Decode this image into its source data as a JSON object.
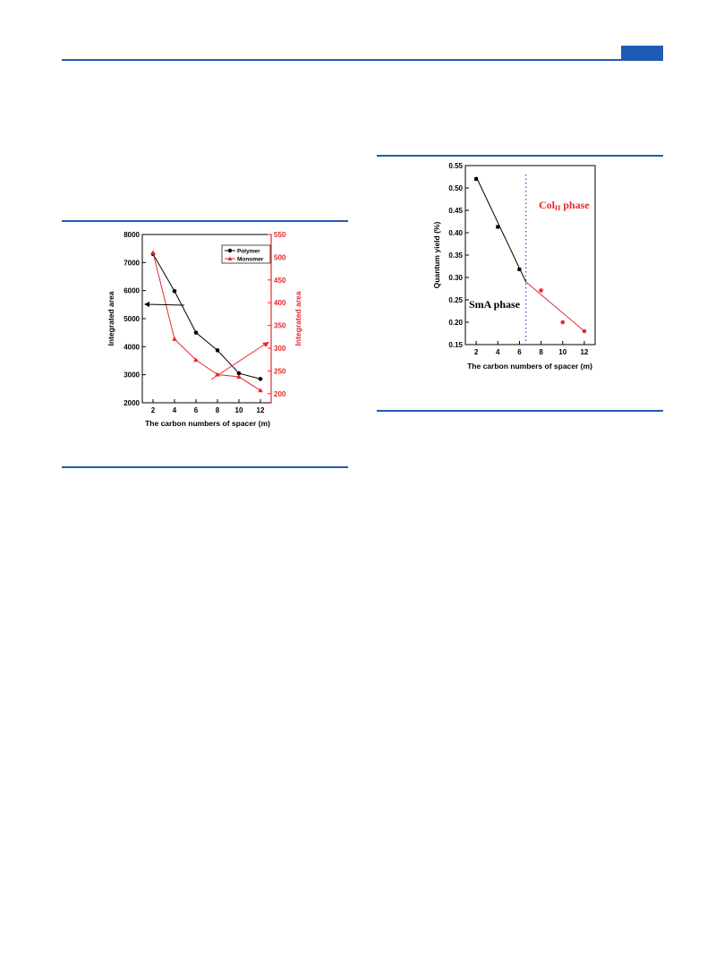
{
  "page": {
    "accent_color": "#1f5bb5"
  },
  "figure_left": {
    "chart_data": {
      "type": "line",
      "xlabel": "The carbon numbers of spacer (m)",
      "ylabel_left": "Integrated area",
      "ylabel_right": "Integrated area",
      "x_ticks": [
        "2",
        "4",
        "6",
        "8",
        "10",
        "12"
      ],
      "y_left_ticks": [
        "2000",
        "3000",
        "4000",
        "5000",
        "6000",
        "7000",
        "8000"
      ],
      "y_right_ticks": [
        "200",
        "250",
        "300",
        "350",
        "400",
        "450",
        "500",
        "550"
      ],
      "ylim_left": [
        2000,
        8000
      ],
      "ylim_right": [
        180,
        550
      ],
      "xlim": [
        1,
        13
      ],
      "legend_position": "top-right",
      "series": [
        {
          "name": "Polymer",
          "axis": "left",
          "color": "#000000",
          "marker": "circle",
          "x": [
            2,
            4,
            6,
            8,
            10,
            12
          ],
          "values": [
            7300,
            5980,
            4500,
            3870,
            3050,
            2850
          ]
        },
        {
          "name": "Monomer",
          "axis": "right",
          "color": "#e8262b",
          "marker": "triangle",
          "x": [
            2,
            4,
            6,
            8,
            10,
            12
          ],
          "values": [
            510,
            320,
            274,
            242,
            237,
            207
          ]
        }
      ]
    }
  },
  "figure_right": {
    "chart_data": {
      "type": "scatter",
      "xlabel": "The carbon numbers of spacer (m)",
      "ylabel": "Quantum yield (%)",
      "x_ticks": [
        "2",
        "4",
        "6",
        "8",
        "10",
        "12"
      ],
      "y_ticks": [
        "0.15",
        "0.20",
        "0.25",
        "0.30",
        "0.35",
        "0.40",
        "0.45",
        "0.50",
        "0.55"
      ],
      "ylim": [
        0.15,
        0.55
      ],
      "xlim": [
        1,
        13
      ],
      "phase_boundary_x": 6.6,
      "annotations": {
        "smA": "SmA phase",
        "colh_main": "Col",
        "colh_sub": "H",
        "colh_tail": " phase"
      },
      "series": [
        {
          "color": "#000000",
          "marker": "square",
          "x": [
            2,
            4,
            6
          ],
          "values": [
            0.52,
            0.413,
            0.318
          ],
          "fit": [
            [
              2,
              0.525
            ],
            [
              6.6,
              0.29
            ]
          ]
        },
        {
          "color": "#e8262b",
          "marker": "circle",
          "x": [
            8,
            10,
            12
          ],
          "values": [
            0.271,
            0.2,
            0.18
          ],
          "fit": [
            [
              6.6,
              0.29
            ],
            [
              12,
              0.18
            ]
          ]
        }
      ]
    }
  }
}
